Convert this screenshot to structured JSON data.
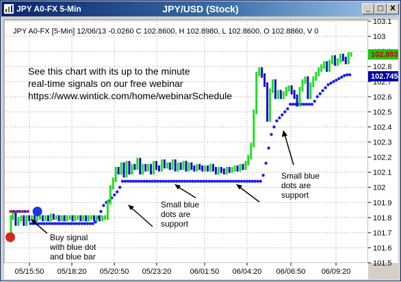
{
  "window": {
    "symbol_title": "JPY A0-FX 5-Min",
    "chart_title": "JPY/USD (Stock)",
    "controls": [
      "_",
      "□",
      "X"
    ]
  },
  "info_line": "JPY A0-FX [5-Min] 12/06/13  -0.0260 C 102.8600, H 102.8980, L 102.8600, O 102.8860, V 0",
  "promo": {
    "line1": "See this chart with its up to the minute",
    "line2": "real-time signals on our free webinar",
    "line3": "https://www.wintick.com/home/webinarSchedule"
  },
  "annotations": {
    "buy_signal": [
      "Buy signal",
      "with blue dot",
      "and blue bar"
    ],
    "support_mid": [
      "Small blue",
      "dots are",
      "support"
    ],
    "support_right": [
      "Small blue",
      "dots are",
      "support"
    ]
  },
  "price_badges": {
    "last": "102.883",
    "stop": "102.745"
  },
  "colors": {
    "up_bar": "#22dd22",
    "down_bar": "#1010cc",
    "support_dots": "#1a1aff",
    "buy_dot": "#1a3ae0",
    "sell_dot": "#e02020",
    "badge_green": "#14c814",
    "badge_blue": "#0000a8"
  },
  "chart_data": {
    "type": "line",
    "title": "JPY/USD (Stock)",
    "xlabel": "",
    "ylabel": "",
    "ylim": [
      101.5,
      103.1
    ],
    "yticks": [
      101.5,
      101.6,
      101.7,
      101.8,
      101.9,
      102.0,
      102.1,
      102.2,
      102.3,
      102.4,
      102.5,
      102.6,
      102.7,
      102.8,
      102.9,
      103.0,
      103.1
    ],
    "ytick_labels": [
      "101.5",
      "101.6",
      "101.7",
      "101.8",
      "101.9",
      "102",
      "102.1",
      "102.2",
      "102.3",
      "102.4",
      "102.5",
      "102.6",
      "102.7",
      "102.8",
      "102.9",
      "103",
      "103.1"
    ],
    "xticks": [
      "05/15:50",
      "05/18:20",
      "05/20:50",
      "05/23:20",
      "06/01:50",
      "06/04:20",
      "06/06:50",
      "06/09:20"
    ],
    "grid": true,
    "series": [
      {
        "name": "",
        "kind": "price",
        "x": [
          0,
          3,
          6,
          10,
          14,
          18,
          22,
          26,
          30,
          34,
          38,
          42,
          46,
          50,
          54,
          58,
          62,
          66,
          70,
          74,
          78,
          82,
          86,
          90,
          94,
          98,
          102,
          106,
          110,
          114,
          118,
          122,
          126,
          130,
          134,
          138,
          142,
          146,
          150,
          154,
          158,
          162,
          166,
          170,
          174,
          178,
          182,
          186,
          190,
          194,
          198,
          202,
          206,
          210,
          214,
          218,
          222,
          226,
          230,
          234,
          238,
          242,
          246,
          250,
          254,
          258,
          262,
          266,
          270,
          274,
          278,
          282,
          286,
          290,
          294,
          298,
          302,
          306,
          310,
          314,
          318,
          322,
          326,
          330,
          334,
          338,
          342,
          346,
          350,
          354,
          358,
          362,
          366,
          370,
          374,
          378,
          382,
          386,
          390,
          394,
          398,
          402,
          406,
          410,
          414,
          418,
          422,
          426,
          430,
          434,
          438,
          442,
          446,
          450,
          454,
          458,
          462,
          466,
          470,
          474,
          478,
          482,
          486,
          490,
          494,
          498,
          502,
          506
        ],
        "y": [
          101.65,
          101.8,
          101.82,
          101.76,
          101.79,
          101.8,
          101.76,
          101.8,
          101.79,
          101.8,
          101.79,
          101.8,
          101.8,
          101.79,
          101.8,
          101.79,
          101.81,
          101.8,
          101.8,
          101.79,
          101.8,
          101.79,
          101.8,
          101.8,
          101.79,
          101.8,
          101.8,
          101.79,
          101.8,
          101.79,
          101.8,
          101.8,
          101.79,
          101.8,
          101.79,
          101.8,
          101.8,
          101.9,
          102.0,
          102.05,
          102.12,
          102.1,
          102.15,
          102.08,
          102.16,
          102.1,
          102.14,
          102.13,
          102.18,
          102.1,
          102.14,
          102.12,
          102.14,
          102.1,
          102.16,
          102.13,
          102.12,
          102.17,
          102.14,
          102.15,
          102.13,
          102.17,
          102.12,
          102.15,
          102.13,
          102.16,
          102.12,
          102.15,
          102.13,
          102.12,
          102.14,
          102.13,
          102.12,
          102.13,
          102.12,
          102.14,
          102.12,
          102.1,
          102.12,
          102.11,
          102.1,
          102.12,
          102.11,
          102.12,
          102.13,
          102.12,
          102.14,
          102.13,
          102.16,
          102.2,
          102.28,
          102.5,
          102.75,
          102.78,
          102.74,
          102.68,
          102.45,
          102.64,
          102.7,
          102.6,
          102.63,
          102.6,
          102.62,
          102.65,
          102.66,
          102.63,
          102.6,
          102.55,
          102.65,
          102.7,
          102.72,
          102.6,
          102.68,
          102.72,
          102.75,
          102.78,
          102.8,
          102.82,
          102.78,
          102.83,
          102.86,
          102.82,
          102.84,
          102.87,
          102.85,
          102.83,
          102.88,
          102.88
        ]
      },
      {
        "name": "",
        "kind": "support",
        "x": [
          4,
          8,
          12,
          16,
          20,
          24,
          28,
          32,
          36,
          40,
          44,
          48,
          52,
          56,
          60,
          64,
          68,
          72,
          76,
          80,
          84,
          88,
          92,
          96,
          100,
          104,
          108,
          112,
          116,
          120,
          124,
          128,
          132,
          136,
          140,
          144,
          148,
          152,
          156,
          160,
          164,
          168,
          172,
          176,
          180,
          184,
          188,
          192,
          196,
          200,
          204,
          208,
          212,
          216,
          220,
          224,
          228,
          232,
          236,
          240,
          244,
          248,
          252,
          256,
          260,
          264,
          268,
          272,
          276,
          280,
          284,
          288,
          292,
          296,
          300,
          304,
          308,
          312,
          316,
          320,
          324,
          328,
          332,
          336,
          340,
          344,
          348,
          352,
          356,
          360,
          364,
          368,
          372,
          376,
          380,
          384,
          388,
          392,
          396,
          400,
          404,
          408,
          412,
          416,
          420,
          424,
          428,
          432,
          436,
          440,
          444,
          448,
          452,
          456,
          460,
          464,
          468,
          472,
          476,
          480,
          484,
          488,
          492,
          496,
          500,
          504
        ],
        "y": [
          101.84,
          101.84,
          101.84,
          101.84,
          101.84,
          101.84,
          101.84,
          101.76,
          101.76,
          101.76,
          101.76,
          101.76,
          101.76,
          101.76,
          101.76,
          101.76,
          101.76,
          101.76,
          101.76,
          101.76,
          101.76,
          101.76,
          101.76,
          101.76,
          101.76,
          101.76,
          101.76,
          101.76,
          101.76,
          101.76,
          101.76,
          101.77,
          101.8,
          101.84,
          101.88,
          101.9,
          101.91,
          101.93,
          101.95,
          101.97,
          102.0,
          102.04,
          102.04,
          102.04,
          102.04,
          102.04,
          102.04,
          102.04,
          102.04,
          102.04,
          102.04,
          102.04,
          102.04,
          102.04,
          102.04,
          102.04,
          102.04,
          102.04,
          102.04,
          102.04,
          102.04,
          102.04,
          102.04,
          102.04,
          102.04,
          102.04,
          102.04,
          102.04,
          102.04,
          102.04,
          102.04,
          102.04,
          102.04,
          102.04,
          102.04,
          102.04,
          102.04,
          102.04,
          102.04,
          102.04,
          102.04,
          102.04,
          102.04,
          102.04,
          102.04,
          102.04,
          102.04,
          102.04,
          102.04,
          102.04,
          102.04,
          102.04,
          102.04,
          102.08,
          102.16,
          102.26,
          102.35,
          102.4,
          102.44,
          102.46,
          102.48,
          102.5,
          102.52,
          102.55,
          102.55,
          102.55,
          102.55,
          102.55,
          102.55,
          102.55,
          102.55,
          102.55,
          102.57,
          102.6,
          102.62,
          102.64,
          102.66,
          102.68,
          102.69,
          102.7,
          102.71,
          102.72,
          102.73,
          102.74,
          102.745,
          102.745
        ]
      }
    ],
    "signals": [
      {
        "type": "buy",
        "x": 30,
        "y": 101.84
      },
      {
        "type": "sell",
        "x": 4,
        "y": 101.67
      }
    ]
  }
}
